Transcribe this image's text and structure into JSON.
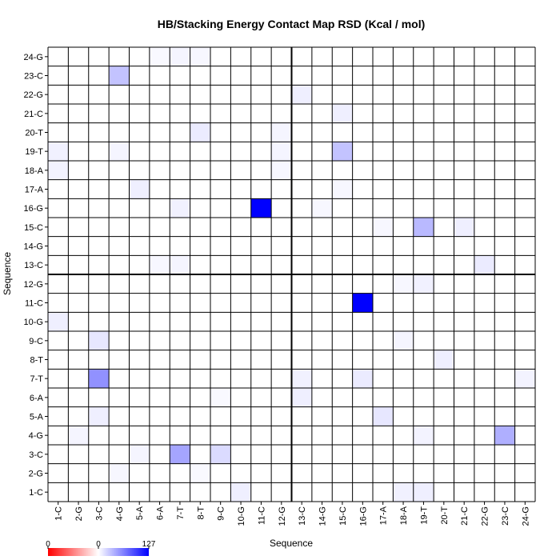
{
  "chart_data": {
    "type": "heatmap",
    "title": "HB/Stacking Energy Contact Map RSD (Kcal / mol)",
    "xlabel": "Sequence",
    "ylabel": "Sequence",
    "labels": [
      "1-C",
      "2-G",
      "3-C",
      "4-G",
      "5-A",
      "6-A",
      "7-T",
      "8-T",
      "9-C",
      "10-G",
      "11-C",
      "12-G",
      "13-C",
      "14-G",
      "15-C",
      "16-G",
      "17-A",
      "18-A",
      "19-T",
      "20-T",
      "21-C",
      "22-G",
      "23-C",
      "24-G"
    ],
    "colorbar": {
      "min": 0,
      "mid": 0,
      "max": 127,
      "ticks": [
        "0",
        "0",
        "127"
      ],
      "colors": [
        "#ff0000",
        "#ffffff",
        "#0000ff"
      ]
    },
    "divider_after": 12,
    "grid": true,
    "cells": [
      {
        "row": "1-C",
        "col": "10-G",
        "value": 8
      },
      {
        "row": "1-C",
        "col": "18-A",
        "value": 7
      },
      {
        "row": "1-C",
        "col": "19-T",
        "value": 8
      },
      {
        "row": "2-G",
        "col": "4-G",
        "value": 4
      },
      {
        "row": "2-G",
        "col": "8-T",
        "value": 3
      },
      {
        "row": "3-C",
        "col": "5-A",
        "value": 5
      },
      {
        "row": "3-C",
        "col": "7-T",
        "value": 45
      },
      {
        "row": "3-C",
        "col": "9-C",
        "value": 18
      },
      {
        "row": "4-G",
        "col": "2-G",
        "value": 5
      },
      {
        "row": "4-G",
        "col": "19-T",
        "value": 6
      },
      {
        "row": "4-G",
        "col": "23-C",
        "value": 40
      },
      {
        "row": "5-A",
        "col": "3-C",
        "value": 8
      },
      {
        "row": "5-A",
        "col": "17-A",
        "value": 12
      },
      {
        "row": "6-A",
        "col": "9-C",
        "value": 3
      },
      {
        "row": "6-A",
        "col": "13-C",
        "value": 8
      },
      {
        "row": "7-T",
        "col": "3-C",
        "value": 55
      },
      {
        "row": "7-T",
        "col": "13-C",
        "value": 7
      },
      {
        "row": "7-T",
        "col": "16-G",
        "value": 10
      },
      {
        "row": "7-T",
        "col": "24-G",
        "value": 6
      },
      {
        "row": "8-T",
        "col": "20-T",
        "value": 8
      },
      {
        "row": "9-C",
        "col": "3-C",
        "value": 12
      },
      {
        "row": "9-C",
        "col": "18-A",
        "value": 5
      },
      {
        "row": "10-G",
        "col": "1-C",
        "value": 8
      },
      {
        "row": "11-C",
        "col": "16-G",
        "value": 127
      },
      {
        "row": "12-G",
        "col": "19-T",
        "value": 7
      },
      {
        "row": "12-G",
        "col": "18-A",
        "value": 4
      },
      {
        "row": "13-C",
        "col": "7-T",
        "value": 5
      },
      {
        "row": "13-C",
        "col": "6-A",
        "value": 4
      },
      {
        "row": "13-C",
        "col": "22-G",
        "value": 10
      },
      {
        "row": "15-C",
        "col": "19-T",
        "value": 35
      },
      {
        "row": "15-C",
        "col": "21-C",
        "value": 8
      },
      {
        "row": "15-C",
        "col": "17-A",
        "value": 4
      },
      {
        "row": "16-G",
        "col": "11-C",
        "value": 127
      },
      {
        "row": "16-G",
        "col": "7-T",
        "value": 7
      },
      {
        "row": "16-G",
        "col": "14-G",
        "value": 4
      },
      {
        "row": "17-A",
        "col": "5-A",
        "value": 8
      },
      {
        "row": "17-A",
        "col": "15-C",
        "value": 4
      },
      {
        "row": "18-A",
        "col": "1-C",
        "value": 6
      },
      {
        "row": "18-A",
        "col": "12-G",
        "value": 4
      },
      {
        "row": "19-T",
        "col": "1-C",
        "value": 7
      },
      {
        "row": "19-T",
        "col": "4-G",
        "value": 5
      },
      {
        "row": "19-T",
        "col": "15-C",
        "value": 30
      },
      {
        "row": "19-T",
        "col": "12-G",
        "value": 5
      },
      {
        "row": "20-T",
        "col": "8-T",
        "value": 10
      },
      {
        "row": "20-T",
        "col": "12-G",
        "value": 5
      },
      {
        "row": "21-C",
        "col": "15-C",
        "value": 8
      },
      {
        "row": "22-G",
        "col": "13-C",
        "value": 8
      },
      {
        "row": "23-C",
        "col": "4-G",
        "value": 30
      },
      {
        "row": "24-G",
        "col": "7-T",
        "value": 5
      },
      {
        "row": "24-G",
        "col": "8-T",
        "value": 4
      },
      {
        "row": "24-G",
        "col": "6-A",
        "value": 3
      }
    ]
  }
}
